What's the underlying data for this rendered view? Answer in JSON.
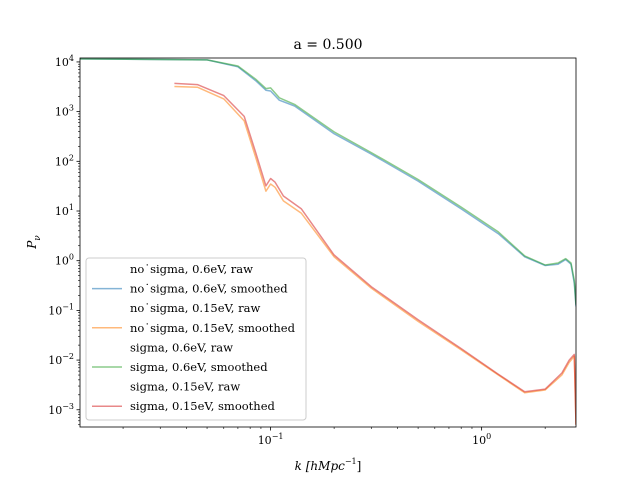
{
  "chart_data": {
    "type": "line",
    "title": "a = 0.500",
    "xlabel": "k [hMpc",
    "xlabel_sup": "−1",
    "xlabel_end": "]",
    "ylabel": "P",
    "ylabel_sub": "ν",
    "xscale": "log",
    "yscale": "log",
    "xlim": [
      0.0125,
      2.8
    ],
    "ylim": [
      0.00045,
      12000
    ],
    "x_ticks": [
      {
        "base": "10",
        "exp": "−1",
        "value": 0.1
      },
      {
        "base": "10",
        "exp": "0",
        "value": 1.0
      }
    ],
    "y_ticks": [
      {
        "base": "10",
        "exp": "−3",
        "value": 0.001
      },
      {
        "base": "10",
        "exp": "−2",
        "value": 0.01
      },
      {
        "base": "10",
        "exp": "−1",
        "value": 0.1
      },
      {
        "base": "10",
        "exp": "0",
        "value": 1
      },
      {
        "base": "10",
        "exp": "1",
        "value": 10
      },
      {
        "base": "10",
        "exp": "2",
        "value": 100
      },
      {
        "base": "10",
        "exp": "3",
        "value": 1000
      },
      {
        "base": "10",
        "exp": "4",
        "value": 10000
      }
    ],
    "legend_position": "lower-left",
    "grid": false,
    "series": [
      {
        "name": "no˙sigma, 0.6eV, raw",
        "color": "#1f77b4",
        "alpha": 0.5,
        "style": "none",
        "x": [
          0.0125,
          0.05,
          0.07,
          0.085,
          0.095,
          0.1,
          0.11,
          0.13,
          0.2,
          0.3,
          0.5,
          0.8,
          1.2,
          1.6,
          2.0,
          2.3,
          2.5,
          2.65,
          2.75,
          2.8
        ],
        "y": [
          11500,
          11000,
          8000,
          4200,
          2700,
          2600,
          1700,
          1300,
          360,
          140,
          40,
          11,
          3.5,
          1.2,
          0.8,
          0.85,
          1.05,
          0.85,
          0.35,
          0.12
        ]
      },
      {
        "name": "no˙sigma, 0.6eV, smoothed",
        "color": "#1f77b4",
        "alpha": 0.55,
        "style": "solid",
        "x": [
          0.0125,
          0.05,
          0.07,
          0.085,
          0.095,
          0.1,
          0.11,
          0.13,
          0.2,
          0.3,
          0.5,
          0.8,
          1.2,
          1.6,
          2.0,
          2.3,
          2.5,
          2.65,
          2.75,
          2.8
        ],
        "y": [
          11500,
          11000,
          8000,
          4200,
          2700,
          2600,
          1700,
          1300,
          360,
          140,
          40,
          11,
          3.5,
          1.2,
          0.8,
          0.85,
          1.05,
          0.85,
          0.35,
          0.12
        ]
      },
      {
        "name": "no˙sigma, 0.15eV, raw",
        "color": "#ff7f0e",
        "alpha": 0.5,
        "style": "none",
        "x": [
          0.035,
          0.045,
          0.06,
          0.075,
          0.085,
          0.095,
          0.1,
          0.105,
          0.115,
          0.14,
          0.2,
          0.3,
          0.5,
          0.8,
          1.2,
          1.6,
          2.0,
          2.4,
          2.6,
          2.75,
          2.8
        ],
        "y": [
          3200,
          3100,
          1800,
          650,
          120,
          25,
          35,
          30,
          16,
          9,
          1.2,
          0.28,
          0.06,
          0.016,
          0.005,
          0.0022,
          0.0025,
          0.005,
          0.009,
          0.012,
          0.0005
        ]
      },
      {
        "name": "no˙sigma, 0.15eV, smoothed",
        "color": "#ff7f0e",
        "alpha": 0.55,
        "style": "solid",
        "x": [
          0.035,
          0.045,
          0.06,
          0.075,
          0.085,
          0.095,
          0.1,
          0.105,
          0.115,
          0.14,
          0.2,
          0.3,
          0.5,
          0.8,
          1.2,
          1.6,
          2.0,
          2.4,
          2.6,
          2.75,
          2.8
        ],
        "y": [
          3200,
          3100,
          1800,
          650,
          120,
          25,
          35,
          30,
          16,
          9,
          1.2,
          0.28,
          0.06,
          0.016,
          0.005,
          0.0022,
          0.0025,
          0.005,
          0.009,
          0.012,
          0.0005
        ]
      },
      {
        "name": "sigma, 0.6eV, raw",
        "color": "#2ca02c",
        "alpha": 0.5,
        "style": "none",
        "x": [
          0.0125,
          0.05,
          0.07,
          0.085,
          0.095,
          0.1,
          0.11,
          0.13,
          0.2,
          0.3,
          0.5,
          0.8,
          1.2,
          1.6,
          2.0,
          2.3,
          2.5,
          2.65,
          2.75,
          2.8
        ],
        "y": [
          11500,
          11000,
          8300,
          4500,
          2900,
          3000,
          1900,
          1400,
          390,
          150,
          43,
          12,
          3.8,
          1.25,
          0.82,
          0.9,
          1.1,
          0.9,
          0.4,
          0.13
        ]
      },
      {
        "name": "sigma, 0.6eV, smoothed",
        "color": "#2ca02c",
        "alpha": 0.55,
        "style": "solid",
        "x": [
          0.0125,
          0.05,
          0.07,
          0.085,
          0.095,
          0.1,
          0.11,
          0.13,
          0.2,
          0.3,
          0.5,
          0.8,
          1.2,
          1.6,
          2.0,
          2.3,
          2.5,
          2.65,
          2.75,
          2.8
        ],
        "y": [
          11500,
          11000,
          8300,
          4500,
          2900,
          3000,
          1900,
          1400,
          390,
          150,
          43,
          12,
          3.8,
          1.25,
          0.82,
          0.9,
          1.1,
          0.9,
          0.4,
          0.13
        ]
      },
      {
        "name": "sigma, 0.15eV, raw",
        "color": "#d62728",
        "alpha": 0.5,
        "style": "none",
        "x": [
          0.035,
          0.045,
          0.06,
          0.075,
          0.085,
          0.095,
          0.1,
          0.105,
          0.115,
          0.14,
          0.2,
          0.3,
          0.5,
          0.8,
          1.2,
          1.6,
          2.0,
          2.4,
          2.6,
          2.75,
          2.8
        ],
        "y": [
          3700,
          3500,
          2100,
          800,
          150,
          32,
          45,
          38,
          20,
          11,
          1.3,
          0.3,
          0.065,
          0.017,
          0.0052,
          0.0023,
          0.0026,
          0.0055,
          0.01,
          0.013,
          0.0005
        ]
      },
      {
        "name": "sigma, 0.15eV, smoothed",
        "color": "#d62728",
        "alpha": 0.55,
        "style": "solid",
        "x": [
          0.035,
          0.045,
          0.06,
          0.075,
          0.085,
          0.095,
          0.1,
          0.105,
          0.115,
          0.14,
          0.2,
          0.3,
          0.5,
          0.8,
          1.2,
          1.6,
          2.0,
          2.4,
          2.6,
          2.75,
          2.8
        ],
        "y": [
          3700,
          3500,
          2100,
          800,
          150,
          32,
          45,
          38,
          20,
          11,
          1.3,
          0.3,
          0.065,
          0.017,
          0.0052,
          0.0023,
          0.0026,
          0.0055,
          0.01,
          0.013,
          0.0005
        ]
      }
    ]
  }
}
